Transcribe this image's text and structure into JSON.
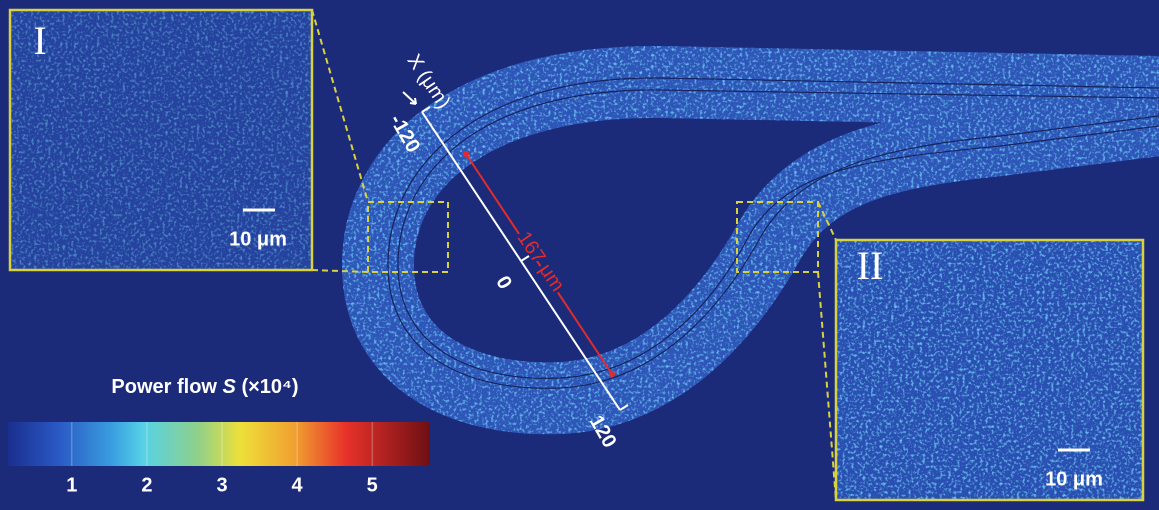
{
  "figure": {
    "insets": [
      {
        "label": "I",
        "scale_bar": "10 μm"
      },
      {
        "label": "II",
        "scale_bar": "10 μm"
      }
    ],
    "position_axis": {
      "label": "X (μm)",
      "lim": [
        -120,
        120
      ],
      "ticks": [
        -120,
        0,
        120
      ]
    },
    "distance_label": "167 μm",
    "colorbar": {
      "title": "Power flow",
      "symbol": "S",
      "scale": "(×10⁴)",
      "lim": [
        0.15,
        5.77
      ],
      "ticks": [
        1,
        2,
        3,
        4,
        5
      ]
    }
  }
}
